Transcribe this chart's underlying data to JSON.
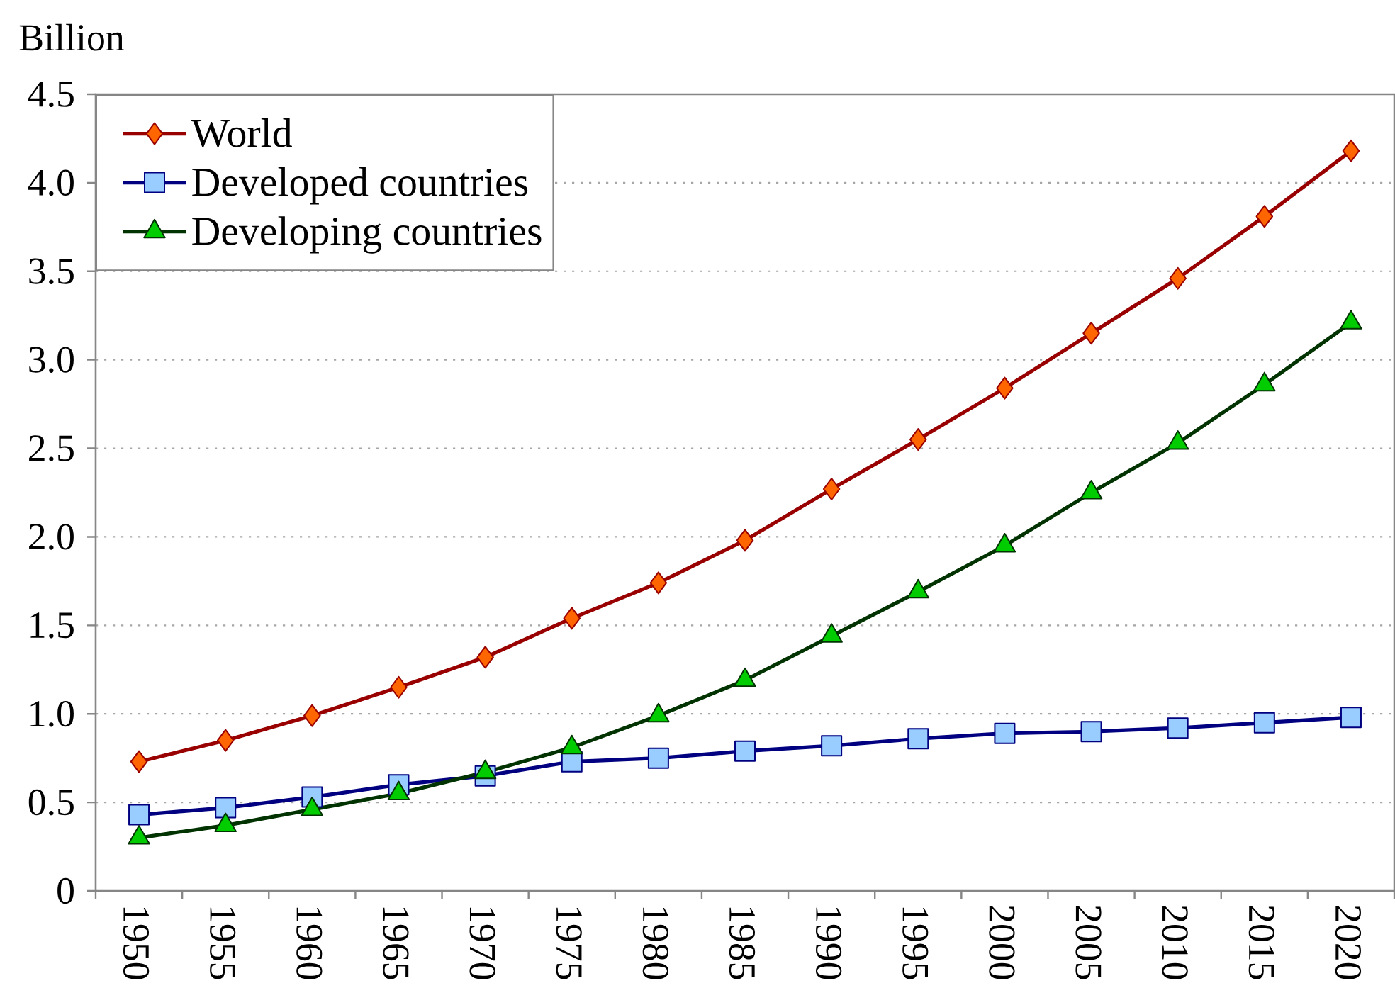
{
  "chart_data": {
    "type": "line",
    "ylabel": "Billion",
    "categories": [
      "1950",
      "1955",
      "1960",
      "1965",
      "1970",
      "1975",
      "1980",
      "1985",
      "1990",
      "1995",
      "2000",
      "2005",
      "2010",
      "2015",
      "2020"
    ],
    "ylim": [
      0,
      4.5
    ],
    "yticks": [
      0,
      0.5,
      {
        "value": 1,
        "label": "1.0"
      },
      1.5,
      {
        "value": 2,
        "label": "2.0"
      },
      2.5,
      {
        "value": 3,
        "label": "3.0"
      },
      3.5,
      {
        "value": 4,
        "label": "4.0"
      },
      4.5
    ],
    "grid": "y",
    "legend": "top left",
    "series": [
      {
        "name": "World",
        "color": "#990000",
        "marker": "diamond",
        "colors": [
          "#ff6600",
          "#ff6600",
          "#ff6600",
          "#ff6600",
          "#ff6600",
          "#ff6600",
          "#ff6600",
          "#ff6600",
          "#ff6600",
          "#ff6600",
          "#ff6600",
          "#ff6600",
          "#ff6600",
          "#ff6600",
          "#ff6600"
        ],
        "values": [
          0.73,
          0.85,
          0.99,
          1.15,
          1.32,
          1.54,
          1.74,
          1.98,
          2.27,
          2.55,
          2.84,
          3.15,
          3.46,
          3.81,
          4.18
        ]
      },
      {
        "name": "Developed countries",
        "color": "#000080",
        "marker": "square",
        "colors": [
          "#99ccff",
          "#99ccff",
          "#99ccff",
          "#99ccff",
          "#99ccff",
          "#99ccff",
          "#99ccff",
          "#99ccff",
          "#99ccff",
          "#99ccff",
          "#99ccff",
          "#99ccff",
          "#99ccff",
          "#99ccff",
          "#99ccff"
        ],
        "values": [
          0.43,
          0.47,
          0.53,
          0.6,
          0.65,
          0.73,
          0.75,
          0.79,
          0.82,
          0.86,
          0.89,
          0.9,
          0.92,
          0.95,
          0.98
        ]
      },
      {
        "name": "Developing countries",
        "color": "#003300",
        "marker": "triangle",
        "colors": [
          "#00cc00",
          "#00cc00",
          "#00cc00",
          "#00cc00",
          "#00cc00",
          "#00cc00",
          "#00cc00",
          "#00cc00",
          "#00cc00",
          "#00cc00",
          "#00cc00",
          "#00cc00",
          "#00cc00",
          "#00cc00",
          "#00cc00"
        ],
        "values": [
          0.3,
          0.37,
          0.46,
          0.55,
          0.67,
          0.81,
          0.99,
          1.19,
          1.44,
          1.69,
          1.95,
          2.25,
          2.53,
          2.86,
          3.21
        ]
      }
    ]
  }
}
